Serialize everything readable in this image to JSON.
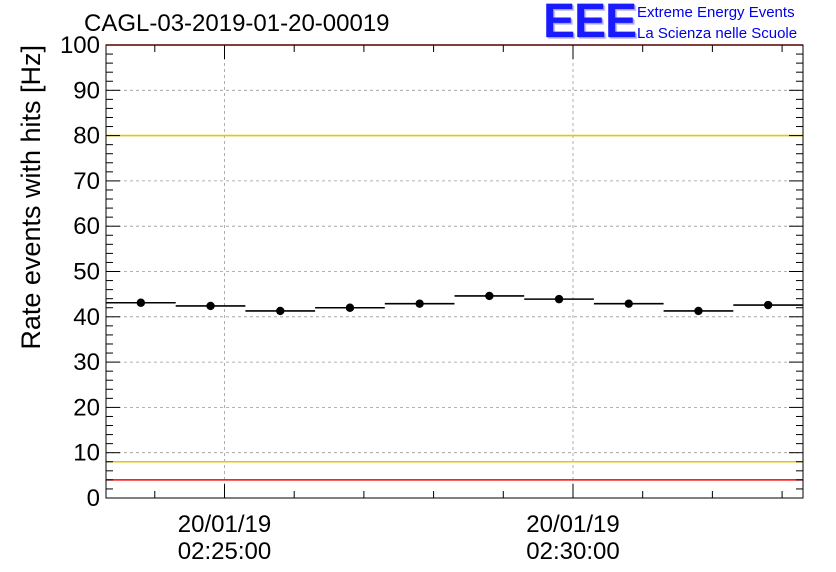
{
  "header": {
    "run_title": "CAGL-03-2019-01-20-00019",
    "logo_mark": "EEE",
    "logo_line1": "Extreme Energy Events",
    "logo_line2": "La Scienza nelle Scuole"
  },
  "chart_data": {
    "type": "scatter",
    "title": "CAGL-03-2019-01-20-00019",
    "xlabel": "",
    "ylabel": "Rate events with hits [Hz]",
    "ylim": [
      0,
      100
    ],
    "yticks": [
      0,
      10,
      20,
      30,
      40,
      50,
      60,
      70,
      80,
      90,
      100
    ],
    "xlim_minutes": [
      -1.7,
      8.3
    ],
    "x_unit": "minutes after 20/01/19 02:25:00",
    "xtick_minutes": [
      0,
      5
    ],
    "xtick_labels": [
      {
        "date": "20/01/19",
        "time": "02:25:00"
      },
      {
        "date": "20/01/19",
        "time": "02:30:00"
      }
    ],
    "grid": true,
    "bin_width_minutes": 1.0,
    "series": [
      {
        "name": "rate",
        "x_minutes": [
          -1.2,
          -0.2,
          0.8,
          1.8,
          2.8,
          3.8,
          4.8,
          5.8,
          6.8,
          7.8
        ],
        "values": [
          43.1,
          42.4,
          41.3,
          42.0,
          42.9,
          44.6,
          43.9,
          42.9,
          41.3,
          42.6
        ]
      }
    ],
    "reference_lines": [
      {
        "name": "upper-red",
        "value": 100,
        "color": "#ff0000"
      },
      {
        "name": "upper-yellow",
        "value": 80,
        "color": "#e6c800"
      },
      {
        "name": "lower-yellow",
        "value": 8,
        "color": "#e6c800"
      },
      {
        "name": "lower-red",
        "value": 4,
        "color": "#ff0000"
      }
    ]
  }
}
